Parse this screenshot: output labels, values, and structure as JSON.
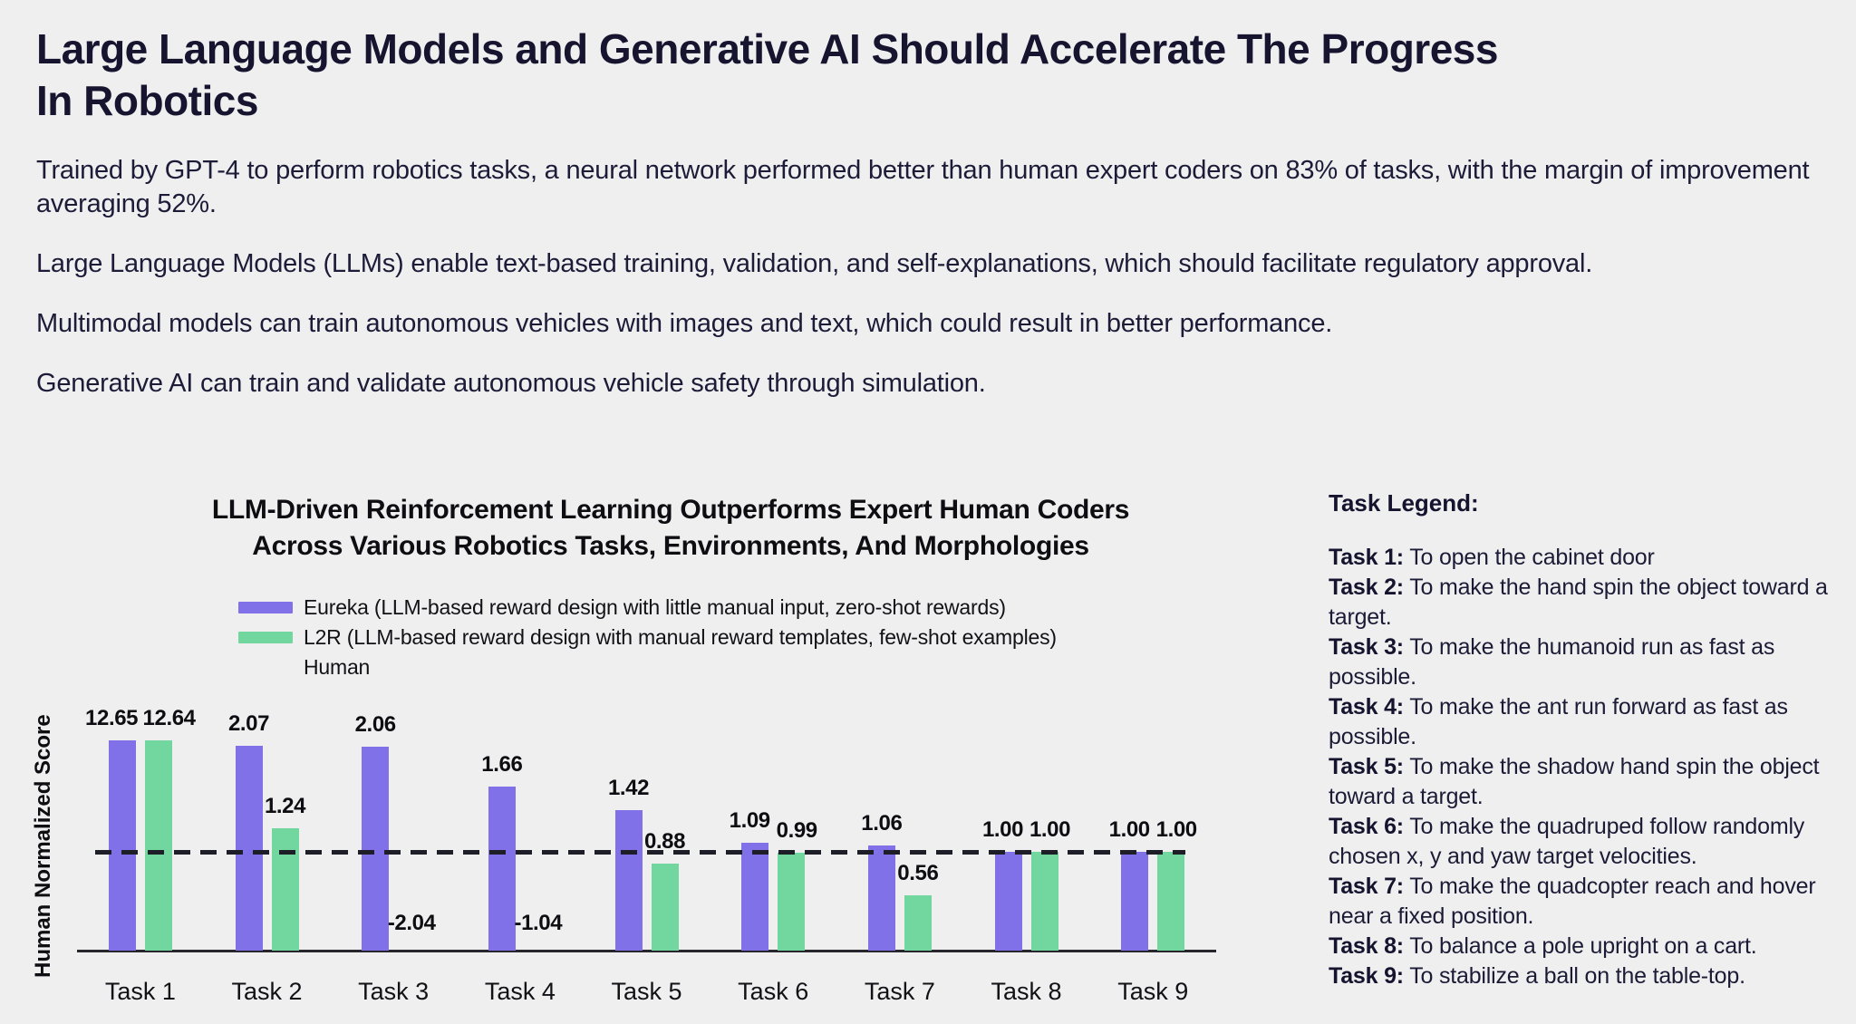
{
  "page": {
    "background": "#f0eff0",
    "title_lines": [
      "Large Language Models and Generative AI Should Accelerate The Progress",
      "In Robotics"
    ],
    "intro_paragraphs": [
      "Trained by GPT-4 to perform robotics tasks, a neural network performed better than human expert coders on 83% of tasks, with the margin of improvement averaging 52%.",
      "Large Language Models (LLMs) enable text-based training, validation, and self-explanations, which should facilitate regulatory approval.",
      "Multimodal models can train autonomous vehicles with images and text, which could result in better performance.",
      "Generative AI can train and validate autonomous vehicle safety through simulation."
    ]
  },
  "chart": {
    "title_lines": [
      "LLM-Driven Reinforcement Learning Outperforms Expert Human Coders",
      "Across Various Robotics Tasks, Environments, And Morphologies"
    ],
    "ylabel": "Human Normalized Score",
    "legend": [
      {
        "label": "Eureka (LLM-based reward design with little manual input, zero-shot rewards)",
        "swatch": "bar",
        "color": "#8071e9"
      },
      {
        "label": "L2R (LLM-based reward design with manual reward templates, few-shot examples)",
        "swatch": "bar",
        "color": "#72d79e"
      },
      {
        "label": "Human",
        "swatch": "dashed-line",
        "color": "#1e1e28"
      }
    ]
  },
  "chart_data": {
    "type": "bar",
    "title": "LLM-Driven Reinforcement Learning Outperforms Expert Human Coders Across Various Robotics Tasks, Environments, And Morphologies",
    "xlabel": "",
    "ylabel": "Human Normalized Score",
    "categories": [
      "Task 1",
      "Task 2",
      "Task 3",
      "Task 4",
      "Task 5",
      "Task 6",
      "Task 7",
      "Task 8",
      "Task 9"
    ],
    "series": [
      {
        "name": "Eureka (LLM-based reward design with little manual input, zero-shot rewards)",
        "color": "#8071e9",
        "values": [
          12.65,
          2.07,
          2.06,
          1.66,
          1.42,
          1.09,
          1.06,
          1.0,
          1.0
        ],
        "value_labels": [
          "12.65",
          "2.07",
          "2.06",
          "1.66",
          "1.42",
          "1.09",
          "1.06",
          "1.00",
          "1.00"
        ]
      },
      {
        "name": "L2R (LLM-based reward design with manual reward templates, few-shot examples)",
        "color": "#72d79e",
        "values": [
          12.64,
          1.24,
          -2.04,
          -1.04,
          0.88,
          0.99,
          0.56,
          1.0,
          1.0
        ],
        "value_labels": [
          "12.64",
          "1.24",
          "-2.04",
          "-1.04",
          "0.88",
          "0.99",
          "0.56",
          "1.00",
          "1.00"
        ]
      }
    ],
    "reference_line": {
      "name": "Human",
      "value": 1.0,
      "style": "dashed",
      "color": "#1e1e28"
    },
    "clip_max_value": 2.13,
    "negative_values_drawn_as_labels_only": true,
    "grid": false,
    "legend_position": "top-left"
  },
  "task_legend": {
    "heading": "Task Legend:",
    "items": [
      {
        "label": "Task 1:",
        "text": "To open the cabinet door"
      },
      {
        "label": "Task 2:",
        "text": "To make the hand spin the object toward a target."
      },
      {
        "label": "Task 3:",
        "text": "To make the humanoid run as fast as possible."
      },
      {
        "label": "Task 4:",
        "text": "To make the ant run forward as fast as possible."
      },
      {
        "label": "Task 5:",
        "text": "To make the shadow hand spin the object toward a target."
      },
      {
        "label": "Task 6:",
        "text": "To make the quadruped follow randomly chosen x, y and yaw target velocities."
      },
      {
        "label": "Task 7:",
        "text": "To make the quadcopter reach and hover near a fixed position."
      },
      {
        "label": "Task 8:",
        "text": "To balance a pole upright on a cart."
      },
      {
        "label": "Task 9:",
        "text": "To stabilize a ball on the table-top."
      }
    ]
  },
  "colors": {
    "background": "#f0eff0",
    "title_text": "#16142e",
    "body_text": "#1d1c38",
    "chart_text": "#0d0d12",
    "eureka_purple": "#8071e9",
    "l2r_green": "#72d79e",
    "human_dash": "#1e1e28",
    "axis_line": "#26262c"
  }
}
